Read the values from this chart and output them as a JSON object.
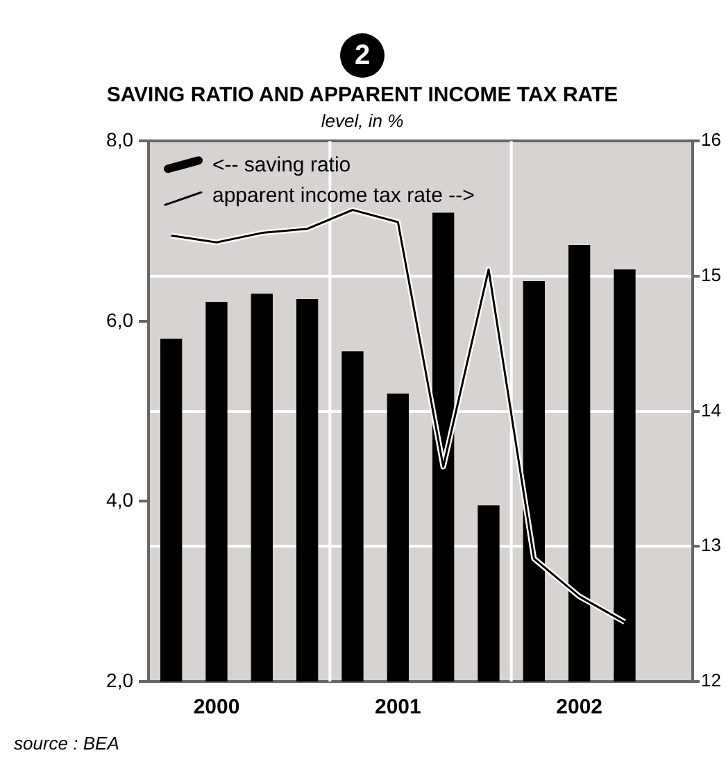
{
  "chart_data": {
    "type": "bar",
    "title": "SAVING RATIO AND APPARENT INCOME TAX RATE",
    "subtitle": "level, in %",
    "annotations": [
      "2",
      "source : BEA"
    ],
    "categories": [
      null,
      "2000",
      null,
      null,
      null,
      "2001",
      null,
      null,
      null,
      "2002",
      null,
      null
    ],
    "ylim": [
      2,
      8
    ],
    "yticks": [
      {
        "value": 2,
        "label": "2,0"
      },
      {
        "value": 4,
        "label": "4,0"
      },
      {
        "value": 6,
        "label": "6,0"
      },
      {
        "value": 8,
        "label": "8,0"
      }
    ],
    "y2lim": [
      12,
      16
    ],
    "y2ticks": [
      12,
      13,
      14,
      15,
      16
    ],
    "series": [
      {
        "name": "<-- saving ratio",
        "color": "#000000",
        "values": [
          5.8,
          6.21,
          6.3,
          6.24,
          5.66,
          5.19,
          7.2,
          3.95,
          6.44,
          6.84,
          6.57,
          null
        ]
      },
      {
        "name": "apparent income tax rate -->",
        "type": "line",
        "axis": "y2",
        "color": "#000000",
        "values": [
          15.3,
          15.25,
          15.32,
          15.35,
          15.49,
          15.4,
          13.59,
          15.05,
          12.91,
          12.63,
          12.44,
          null
        ]
      }
    ],
    "grid": "y",
    "legend": "top left",
    "marker": "none",
    "line_style": "solid"
  }
}
